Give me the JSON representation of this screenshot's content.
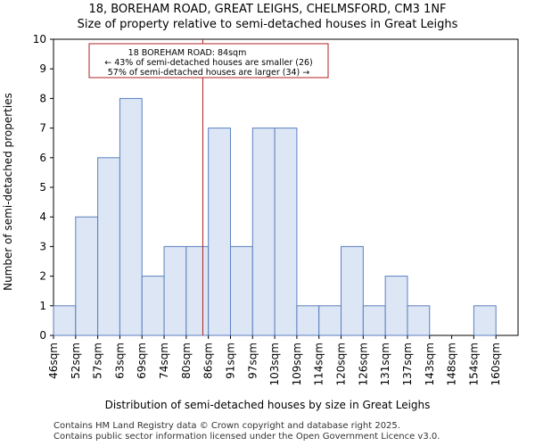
{
  "title_line1": "18, BOREHAM ROAD, GREAT LEIGHS, CHELMSFORD, CM3 1NF",
  "title_line2": "Size of property relative to semi-detached houses in Great Leighs",
  "footer_line1": "Contains HM Land Registry data © Crown copyright and database right 2025.",
  "footer_line2": "Contains public sector information licensed under the Open Government Licence v3.0.",
  "chart_data": {
    "type": "bar",
    "title": "Size of property relative to semi-detached houses in Great Leighs",
    "xlabel": "Distribution of semi-detached houses by size in Great Leighs",
    "ylabel": "Number of semi-detached properties",
    "categories": [
      "46sqm",
      "52sqm",
      "57sqm",
      "63sqm",
      "69sqm",
      "74sqm",
      "80sqm",
      "86sqm",
      "91sqm",
      "97sqm",
      "103sqm",
      "109sqm",
      "114sqm",
      "120sqm",
      "126sqm",
      "131sqm",
      "137sqm",
      "143sqm",
      "148sqm",
      "154sqm",
      "160sqm"
    ],
    "values": [
      1,
      4,
      6,
      8,
      2,
      3,
      3,
      7,
      3,
      7,
      7,
      1,
      1,
      3,
      1,
      2,
      1,
      0,
      0,
      1,
      0
    ],
    "ylim": [
      0,
      10
    ],
    "yticks": [
      0,
      1,
      2,
      3,
      4,
      5,
      6,
      7,
      8,
      9,
      10
    ],
    "bar_color": "#dce6f5",
    "bar_edge_color": "#5b7fbf",
    "marker": {
      "value_index": 6.75,
      "color": "#b22222",
      "annotation": [
        "18 BOREHAM ROAD: 84sqm",
        "← 43% of semi-detached houses are smaller (26)",
        "57% of semi-detached houses are larger (34) →"
      ]
    }
  }
}
